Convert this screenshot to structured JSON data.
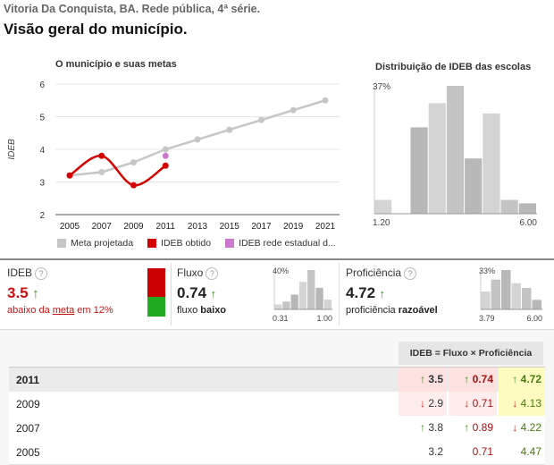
{
  "header": {
    "subtitle": "Vitoria Da Conquista, BA. Rede pública, 4ª série.",
    "title": "Visão geral do município."
  },
  "line_chart": {
    "title": "O município e suas metas",
    "ylabel": "IDEB",
    "legend": [
      {
        "label": "Meta projetada",
        "color": "#c6c6c6"
      },
      {
        "label": "IDEB obtido",
        "color": "#d40000"
      },
      {
        "label": "IDEB rede estadual d...",
        "color": "#cc77cc"
      }
    ]
  },
  "histogram": {
    "title": "Distribuição de IDEB das escolas",
    "ymax_label": "37%",
    "xmin_label": "1.20",
    "xmax_label": "6.00"
  },
  "ideb_panel": {
    "label": "IDEB",
    "value": "3.5",
    "arrow": "↑",
    "desc_prefix": "abaixo da ",
    "desc_link": "meta",
    "desc_suffix": " em 12%",
    "bar_colors": {
      "top": "#cc0000",
      "bottom": "#22aa22"
    },
    "bar_fraction_red": 0.6
  },
  "fluxo_panel": {
    "label": "Fluxo",
    "value": "0.74",
    "arrow": "↑",
    "desc_prefix": "fluxo ",
    "desc_bold": "baixo",
    "hist_ymax": "40%",
    "hist_xmin": "0.31",
    "hist_xmax": "1.00"
  },
  "prof_panel": {
    "label": "Proficiência",
    "value": "4.72",
    "arrow": "↑",
    "desc_prefix": "proficiência ",
    "desc_bold": "razoável",
    "hist_ymax": "33%",
    "hist_xmin": "3.79",
    "hist_xmax": "6.00"
  },
  "table": {
    "formula": "IDEB = Fluxo × Proficiência",
    "rows": [
      {
        "year": "2011",
        "ideb": "3.5",
        "ideb_arrow": "↑",
        "fluxo": "0.74",
        "fluxo_arrow": "↑",
        "prof": "4.72",
        "prof_arrow": "↑"
      },
      {
        "year": "2009",
        "ideb": "2.9",
        "ideb_arrow": "↓",
        "fluxo": "0.71",
        "fluxo_arrow": "↓",
        "prof": "4.13",
        "prof_arrow": "↓"
      },
      {
        "year": "2007",
        "ideb": "3.8",
        "ideb_arrow": "↑",
        "fluxo": "0.89",
        "fluxo_arrow": "↑",
        "prof": "4.22",
        "prof_arrow": "↓"
      },
      {
        "year": "2005",
        "ideb": "3.2",
        "ideb_arrow": "",
        "fluxo": "0.71",
        "fluxo_arrow": "",
        "prof": "4.47",
        "prof_arrow": ""
      }
    ]
  },
  "chart_data": [
    {
      "type": "line",
      "title": "O município e suas metas",
      "ylabel": "IDEB",
      "x": [
        2005,
        2007,
        2009,
        2011,
        2013,
        2015,
        2017,
        2019,
        2021
      ],
      "xticks": [
        "2005",
        "2007",
        "2009",
        "2011",
        "2013",
        "2015",
        "2017",
        "2019",
        "2021"
      ],
      "yticks": [
        "2",
        "3",
        "4",
        "5",
        "6"
      ],
      "ylim": [
        2,
        6
      ],
      "series": [
        {
          "name": "Meta projetada",
          "color": "#c6c6c6",
          "x": [
            2005,
            2007,
            2009,
            2011,
            2013,
            2015,
            2017,
            2019,
            2021
          ],
          "values": [
            3.2,
            3.3,
            3.6,
            4.0,
            4.3,
            4.6,
            4.9,
            5.2,
            5.5
          ]
        },
        {
          "name": "IDEB obtido",
          "color": "#d40000",
          "x": [
            2005,
            2007,
            2009,
            2011
          ],
          "values": [
            3.2,
            3.8,
            2.9,
            3.5
          ]
        },
        {
          "name": "IDEB rede estadual d...",
          "color": "#cc77cc",
          "x": [
            2011
          ],
          "values": [
            3.8
          ]
        }
      ],
      "grid": true,
      "legend": "bottom"
    },
    {
      "type": "bar",
      "title": "Distribuição de IDEB das escolas",
      "xlim": [
        1.2,
        6.0
      ],
      "bins": [
        1.2,
        1.8,
        2.4,
        3.0,
        3.6,
        4.2,
        4.8,
        5.4,
        6.0
      ],
      "values": [
        0.04,
        0,
        0.25,
        0.32,
        0.37,
        0.16,
        0.29,
        0.04,
        0.03
      ],
      "ymax": 0.37
    },
    {
      "type": "bar",
      "title": "Fluxo",
      "xlim": [
        0.31,
        1.0
      ],
      "values": [
        0.05,
        0.08,
        0.15,
        0.28,
        0.4,
        0.22,
        0.1
      ],
      "ymax": 0.4
    },
    {
      "type": "bar",
      "title": "Proficiência",
      "xlim": [
        3.79,
        6.0
      ],
      "values": [
        0.15,
        0.25,
        0.33,
        0.22,
        0.18,
        0.08
      ],
      "ymax": 0.33
    }
  ]
}
